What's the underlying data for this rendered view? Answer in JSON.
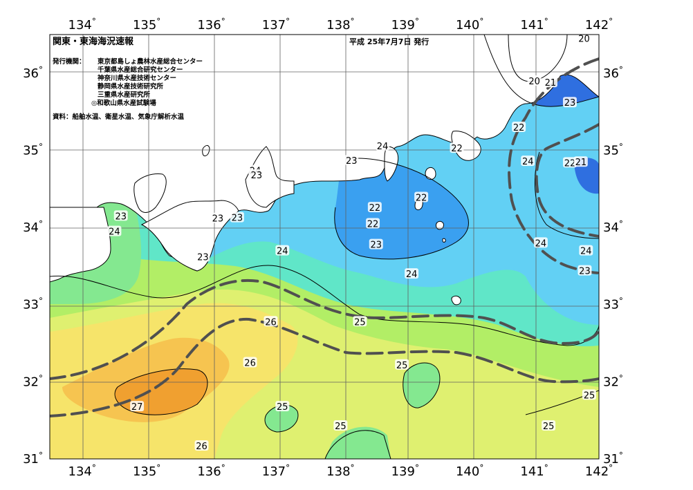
{
  "title": "関東・東海海況速報",
  "issued": "平成 25年7月7日 発行",
  "issuer_label": "発行機関：",
  "issuers": [
    "東京都島しょ農林水産総合センター",
    "千葉県水産総合研究センター",
    "神奈川県水産技術センター",
    "静岡県水産技術研究所",
    "三重県水産研究所",
    "◎和歌山県水産試験場"
  ],
  "source": "資料：船舶水温、衛星水温、気象庁解析水温",
  "axes": {
    "lon_ticks": [
      "134",
      "135",
      "136",
      "137",
      "138",
      "139",
      "140",
      "141",
      "142"
    ],
    "lat_ticks": [
      "36",
      "35",
      "34",
      "33",
      "32",
      "31"
    ],
    "degree": "°"
  },
  "colors": {
    "t20": "#3a3ab8",
    "t21": "#2f6fe0",
    "t22": "#3aa0f0",
    "t23": "#62d0f4",
    "t24": "#60e6c8",
    "t245": "#84e890",
    "t25": "#b2ee66",
    "t255": "#dff070",
    "t26": "#f6e46a",
    "t265": "#f6c450",
    "t27": "#f0a030",
    "land": "#ffffff",
    "grid": "#606060",
    "front": "#505050"
  },
  "contour_labels": [
    {
      "text": "20",
      "lon": 141.77,
      "lat": 36.45
    },
    {
      "text": "20",
      "lon": 141.0,
      "lat": 35.9
    },
    {
      "text": "21",
      "lon": 141.25,
      "lat": 35.88
    },
    {
      "text": "23",
      "lon": 141.55,
      "lat": 35.62
    },
    {
      "text": "22",
      "lon": 140.76,
      "lat": 35.3
    },
    {
      "text": "24",
      "lon": 140.9,
      "lat": 34.86
    },
    {
      "text": "22",
      "lon": 141.55,
      "lat": 34.84
    },
    {
      "text": "21",
      "lon": 141.72,
      "lat": 34.85
    },
    {
      "text": "24",
      "lon": 138.65,
      "lat": 35.06
    },
    {
      "text": "22",
      "lon": 139.8,
      "lat": 35.03
    },
    {
      "text": "23",
      "lon": 138.17,
      "lat": 34.87
    },
    {
      "text": "24",
      "lon": 136.68,
      "lat": 34.74
    },
    {
      "text": "23",
      "lon": 136.7,
      "lat": 34.68
    },
    {
      "text": "22",
      "lon": 139.25,
      "lat": 34.39
    },
    {
      "text": "22",
      "lon": 138.53,
      "lat": 34.26
    },
    {
      "text": "22",
      "lon": 138.5,
      "lat": 34.05
    },
    {
      "text": "23",
      "lon": 136.1,
      "lat": 34.12
    },
    {
      "text": "23",
      "lon": 136.4,
      "lat": 34.13
    },
    {
      "text": "23",
      "lon": 134.6,
      "lat": 34.15
    },
    {
      "text": "24",
      "lon": 134.5,
      "lat": 33.95
    },
    {
      "text": "23",
      "lon": 135.87,
      "lat": 33.62
    },
    {
      "text": "24",
      "lon": 137.1,
      "lat": 33.7
    },
    {
      "text": "23",
      "lon": 138.55,
      "lat": 33.78
    },
    {
      "text": "24",
      "lon": 141.1,
      "lat": 33.8
    },
    {
      "text": "24",
      "lon": 141.8,
      "lat": 33.7
    },
    {
      "text": "23",
      "lon": 141.78,
      "lat": 33.44
    },
    {
      "text": "24",
      "lon": 139.1,
      "lat": 33.4
    },
    {
      "text": "25",
      "lon": 138.3,
      "lat": 32.78
    },
    {
      "text": "26",
      "lon": 136.92,
      "lat": 32.78
    },
    {
      "text": "26",
      "lon": 136.6,
      "lat": 32.25
    },
    {
      "text": "25",
      "lon": 138.95,
      "lat": 32.22
    },
    {
      "text": "27",
      "lon": 134.85,
      "lat": 31.68
    },
    {
      "text": "25",
      "lon": 137.1,
      "lat": 31.68
    },
    {
      "text": "25",
      "lon": 138.0,
      "lat": 31.43
    },
    {
      "text": "25",
      "lon": 141.85,
      "lat": 31.83
    },
    {
      "text": "25",
      "lon": 141.22,
      "lat": 31.43
    },
    {
      "text": "26",
      "lon": 135.85,
      "lat": 31.17
    }
  ]
}
